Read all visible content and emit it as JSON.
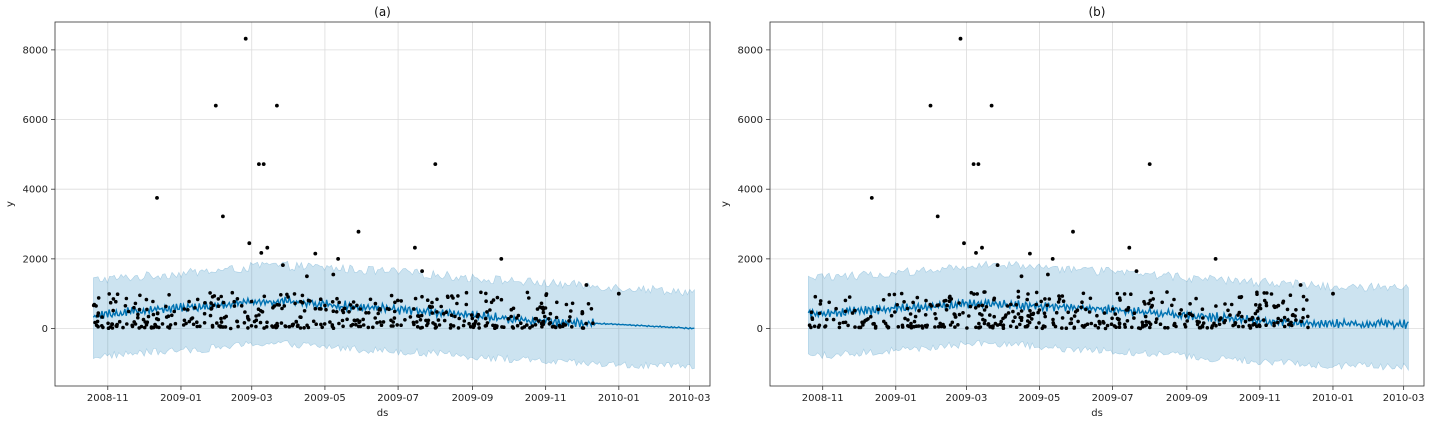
{
  "chart_data": [
    {
      "type": "scatter",
      "title": "(a)",
      "xlabel": "ds",
      "ylabel": "y",
      "x_ticks": [
        "2008-11",
        "2009-01",
        "2009-03",
        "2009-05",
        "2009-07",
        "2009-09",
        "2009-11",
        "2010-01",
        "2010-03"
      ],
      "y_ticks": [
        "0",
        "2000",
        "4000",
        "6000",
        "8000"
      ],
      "xlim": [
        "2008-09-18",
        "2010-03-18"
      ],
      "ylim": [
        -1650,
        8800
      ],
      "grid": true,
      "colors": {
        "points": "#000000",
        "forecast_line": "#0072B2",
        "uncertainty_band": "#0072B2"
      },
      "forecast_line": {
        "x": [
          "2008-10-20",
          "2008-12-01",
          "2009-01-15",
          "2009-02-15",
          "2009-03-10",
          "2009-04-01",
          "2009-05-01",
          "2009-06-01",
          "2009-07-01",
          "2009-08-01",
          "2009-09-01",
          "2009-10-01",
          "2009-11-01",
          "2009-12-01",
          "2010-01-01",
          "2010-02-01",
          "2010-03-05"
        ],
        "y": [
          350,
          520,
          620,
          720,
          780,
          760,
          680,
          620,
          560,
          470,
          380,
          280,
          200,
          160,
          120,
          60,
          0
        ]
      },
      "uncertainty_band": {
        "x": [
          "2008-10-20",
          "2008-12-01",
          "2009-01-15",
          "2009-02-15",
          "2009-03-10",
          "2009-04-01",
          "2009-05-01",
          "2009-06-01",
          "2009-07-01",
          "2009-08-01",
          "2009-09-01",
          "2009-10-01",
          "2009-11-01",
          "2009-12-01",
          "2010-01-01",
          "2010-02-01",
          "2010-03-05"
        ],
        "lower": [
          -800,
          -700,
          -600,
          -500,
          -420,
          -450,
          -520,
          -600,
          -650,
          -720,
          -800,
          -880,
          -950,
          -1000,
          -1050,
          -1080,
          -1100
        ],
        "upper": [
          1400,
          1500,
          1620,
          1700,
          1820,
          1800,
          1750,
          1680,
          1620,
          1550,
          1450,
          1380,
          1300,
          1250,
          1180,
          1120,
          1050
        ]
      },
      "points": {
        "x": [
          "2008-12-12",
          "2009-01-30",
          "2009-02-05",
          "2009-02-24",
          "2009-02-27",
          "2009-03-07",
          "2009-03-09",
          "2009-03-11",
          "2009-03-14",
          "2009-03-22",
          "2009-03-27",
          "2009-04-23",
          "2009-05-12",
          "2009-05-29",
          "2009-07-15",
          "2009-07-21",
          "2009-08-01",
          "2009-09-25",
          "2009-12-05",
          "2010-01-01",
          "2009-05-08",
          "2009-04-16"
        ],
        "y": [
          3750,
          6400,
          3220,
          8320,
          2450,
          4720,
          2170,
          4720,
          2320,
          6400,
          1820,
          2150,
          2000,
          2780,
          2320,
          1650,
          4720,
          2000,
          1250,
          1000,
          1550,
          1500
        ]
      },
      "dense_points": {
        "x_range": [
          "2008-10-20",
          "2009-12-12"
        ],
        "y_range": [
          0,
          1200
        ],
        "count": 420
      }
    },
    {
      "type": "scatter",
      "title": "(b)",
      "xlabel": "ds",
      "ylabel": "y",
      "x_ticks": [
        "2008-11",
        "2009-01",
        "2009-03",
        "2009-05",
        "2009-07",
        "2009-09",
        "2009-11",
        "2010-01",
        "2010-03"
      ],
      "y_ticks": [
        "0",
        "2000",
        "4000",
        "6000",
        "8000"
      ],
      "xlim": [
        "2008-09-18",
        "2010-03-18"
      ],
      "ylim": [
        -1650,
        8800
      ],
      "grid": true,
      "colors": {
        "points": "#000000",
        "forecast_line": "#0072B2",
        "uncertainty_band": "#0072B2"
      },
      "forecast_line": {
        "x": [
          "2008-10-20",
          "2008-12-01",
          "2009-01-15",
          "2009-02-15",
          "2009-03-10",
          "2009-04-01",
          "2009-05-01",
          "2009-06-01",
          "2009-07-01",
          "2009-08-01",
          "2009-09-01",
          "2009-10-01",
          "2009-11-01",
          "2009-12-01",
          "2009-12-15",
          "2010-01-01",
          "2010-03-05"
        ],
        "y": [
          400,
          520,
          600,
          680,
          720,
          700,
          650,
          600,
          540,
          460,
          380,
          300,
          220,
          170,
          150,
          140,
          120
        ]
      },
      "uncertainty_band": {
        "x": [
          "2008-10-20",
          "2008-12-01",
          "2009-01-15",
          "2009-02-15",
          "2009-03-10",
          "2009-04-01",
          "2009-05-01",
          "2009-06-01",
          "2009-07-01",
          "2009-08-01",
          "2009-09-01",
          "2009-10-01",
          "2009-11-01",
          "2009-12-01",
          "2010-01-01",
          "2010-02-01",
          "2010-03-05"
        ],
        "lower": [
          -800,
          -700,
          -600,
          -500,
          -420,
          -450,
          -520,
          -600,
          -650,
          -720,
          -800,
          -880,
          -950,
          -1000,
          -1050,
          -1080,
          -1100
        ],
        "upper": [
          1450,
          1520,
          1640,
          1720,
          1850,
          1820,
          1760,
          1700,
          1630,
          1560,
          1460,
          1400,
          1330,
          1280,
          1220,
          1180,
          1150
        ]
      },
      "points": {
        "x": [
          "2008-12-12",
          "2009-01-30",
          "2009-02-05",
          "2009-02-24",
          "2009-02-27",
          "2009-03-07",
          "2009-03-09",
          "2009-03-11",
          "2009-03-14",
          "2009-03-22",
          "2009-03-27",
          "2009-04-23",
          "2009-05-12",
          "2009-05-29",
          "2009-07-15",
          "2009-07-21",
          "2009-08-01",
          "2009-09-25",
          "2009-12-05",
          "2010-01-01",
          "2009-05-08",
          "2009-04-16"
        ],
        "y": [
          3750,
          6400,
          3220,
          8320,
          2450,
          4720,
          2170,
          4720,
          2320,
          6400,
          1820,
          2150,
          2000,
          2780,
          2320,
          1650,
          4720,
          2000,
          1250,
          1000,
          1550,
          1500
        ]
      },
      "dense_points": {
        "x_range": [
          "2008-10-20",
          "2009-12-12"
        ],
        "y_range": [
          0,
          1200
        ],
        "count": 420
      }
    }
  ]
}
